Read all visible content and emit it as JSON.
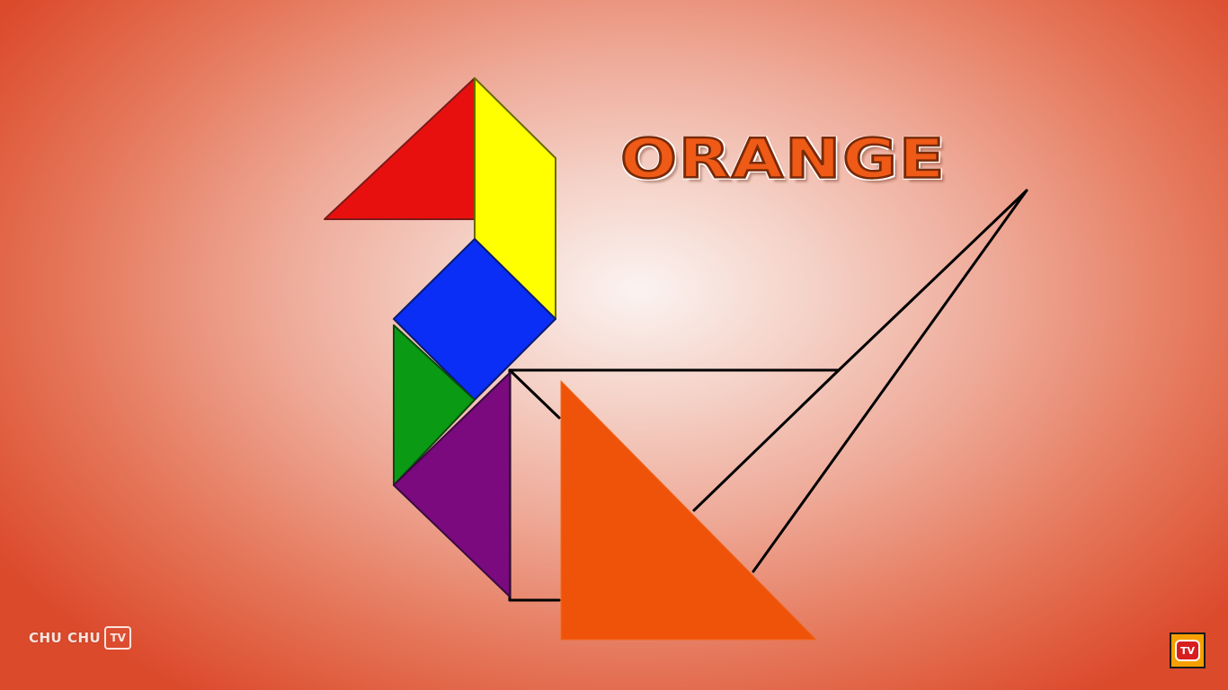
{
  "title_word": "ORANGE",
  "watermark": {
    "brand_text": "CHU CHU",
    "badge_text": "TV"
  },
  "channel_badge": {
    "icon": "tv-logo-icon",
    "text": "TV"
  },
  "pieces": [
    {
      "name": "red-triangle",
      "color": "#e8100e"
    },
    {
      "name": "yellow-parallelogram",
      "color": "#ffff00"
    },
    {
      "name": "blue-square",
      "color": "#0a2ef5"
    },
    {
      "name": "green-triangle",
      "color": "#0a9a14"
    },
    {
      "name": "purple-triangle",
      "color": "#7a0a7e"
    },
    {
      "name": "orange-large-triangle",
      "color": "#ef530a"
    }
  ],
  "outline_color": "#000000"
}
